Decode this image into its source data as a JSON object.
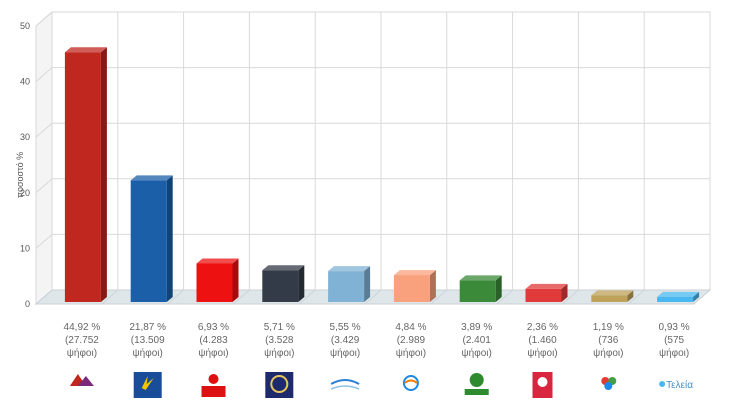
{
  "chart_data": {
    "type": "bar",
    "ylabel": "ποσοστό %",
    "ylim": [
      0,
      50
    ],
    "yticks": [
      0,
      10,
      20,
      30,
      40,
      50
    ],
    "grid": true,
    "categories": [
      "ΣΥΡΙΖΑ",
      "ΝΕΑ ΔΗΜΟΚΡΑΤΙΑ",
      "ΚΚΕ",
      "ΧΡΥΣΗ ΑΥΓΗ",
      "ΑΝΕΞΑΡΤΗΤΟΙ ΕΛΛΗΝΕΣ",
      "ΤΟ ΠΟΤΑΜΙ",
      "ΠΑΣΟΚ",
      "ΚΙΝΗΜΑ",
      "ΕΝΩΣΗ ΚΕΝΤΡΩΩΝ",
      "Τελεία"
    ],
    "values": [
      44.92,
      21.87,
      6.93,
      5.71,
      5.55,
      4.84,
      3.89,
      2.36,
      1.19,
      0.93
    ],
    "colors": [
      "#c0271f",
      "#1a5fa8",
      "#ee1111",
      "#333a48",
      "#7fb2d4",
      "#f9a07c",
      "#3a8a3a",
      "#e03a3a",
      "#bfa25a",
      "#4ab8f0"
    ],
    "data_labels": [
      [
        "44,92 %",
        "(27.752",
        "ψήφοι)"
      ],
      [
        "21,87 %",
        "(13.509",
        "ψήφοι)"
      ],
      [
        "6,93 %",
        "(4.283",
        "ψήφοι)"
      ],
      [
        "5,71 %",
        "(3.528",
        "ψήφοι)"
      ],
      [
        "5,55 %",
        "(3.429",
        "ψήφοι)"
      ],
      [
        "4,84 %",
        "(2.989",
        "ψήφοι)"
      ],
      [
        "3,89 %",
        "(2.401",
        "ψήφοι)"
      ],
      [
        "2,36 %",
        "(1.460",
        "ψήφοι)"
      ],
      [
        "1,19 %",
        "(736",
        "ψήφοι)"
      ],
      [
        "0,93 %",
        "(575",
        "ψήφοι)"
      ]
    ],
    "logos": [
      {
        "text": "ΣΥΡΙΖΑ",
        "icon": "syriza-logo"
      },
      {
        "text": "ΝΕΑ ΔΗΜΟΚΡΑΤΙΑ",
        "icon": "nd-logo"
      },
      {
        "text": "ΚΚΕ",
        "icon": "kke-logo"
      },
      {
        "text": "ΧΡΥΣΗ ΑΥΓΗ",
        "icon": "golden-dawn-logo"
      },
      {
        "text": "ΑΝΕΞΑΡΤΗΤΟΙ ΕΛΛΗΝΕΣ",
        "icon": "anel-logo"
      },
      {
        "text": "ΤΟ ΠΟΤΑΜΙ",
        "icon": "potami-logo"
      },
      {
        "text": "ΠΑΣΟΚ",
        "icon": "pasok-logo"
      },
      {
        "text": "ΚΙΝΗΜΑ",
        "icon": "kinima-logo"
      },
      {
        "text": "ΕΝΩΣΗ ΚΕΝΤΡΩΩΝ",
        "icon": "enosi-kentroon-logo"
      },
      {
        "text": "Τελεία",
        "icon": "teleia-logo"
      }
    ]
  }
}
